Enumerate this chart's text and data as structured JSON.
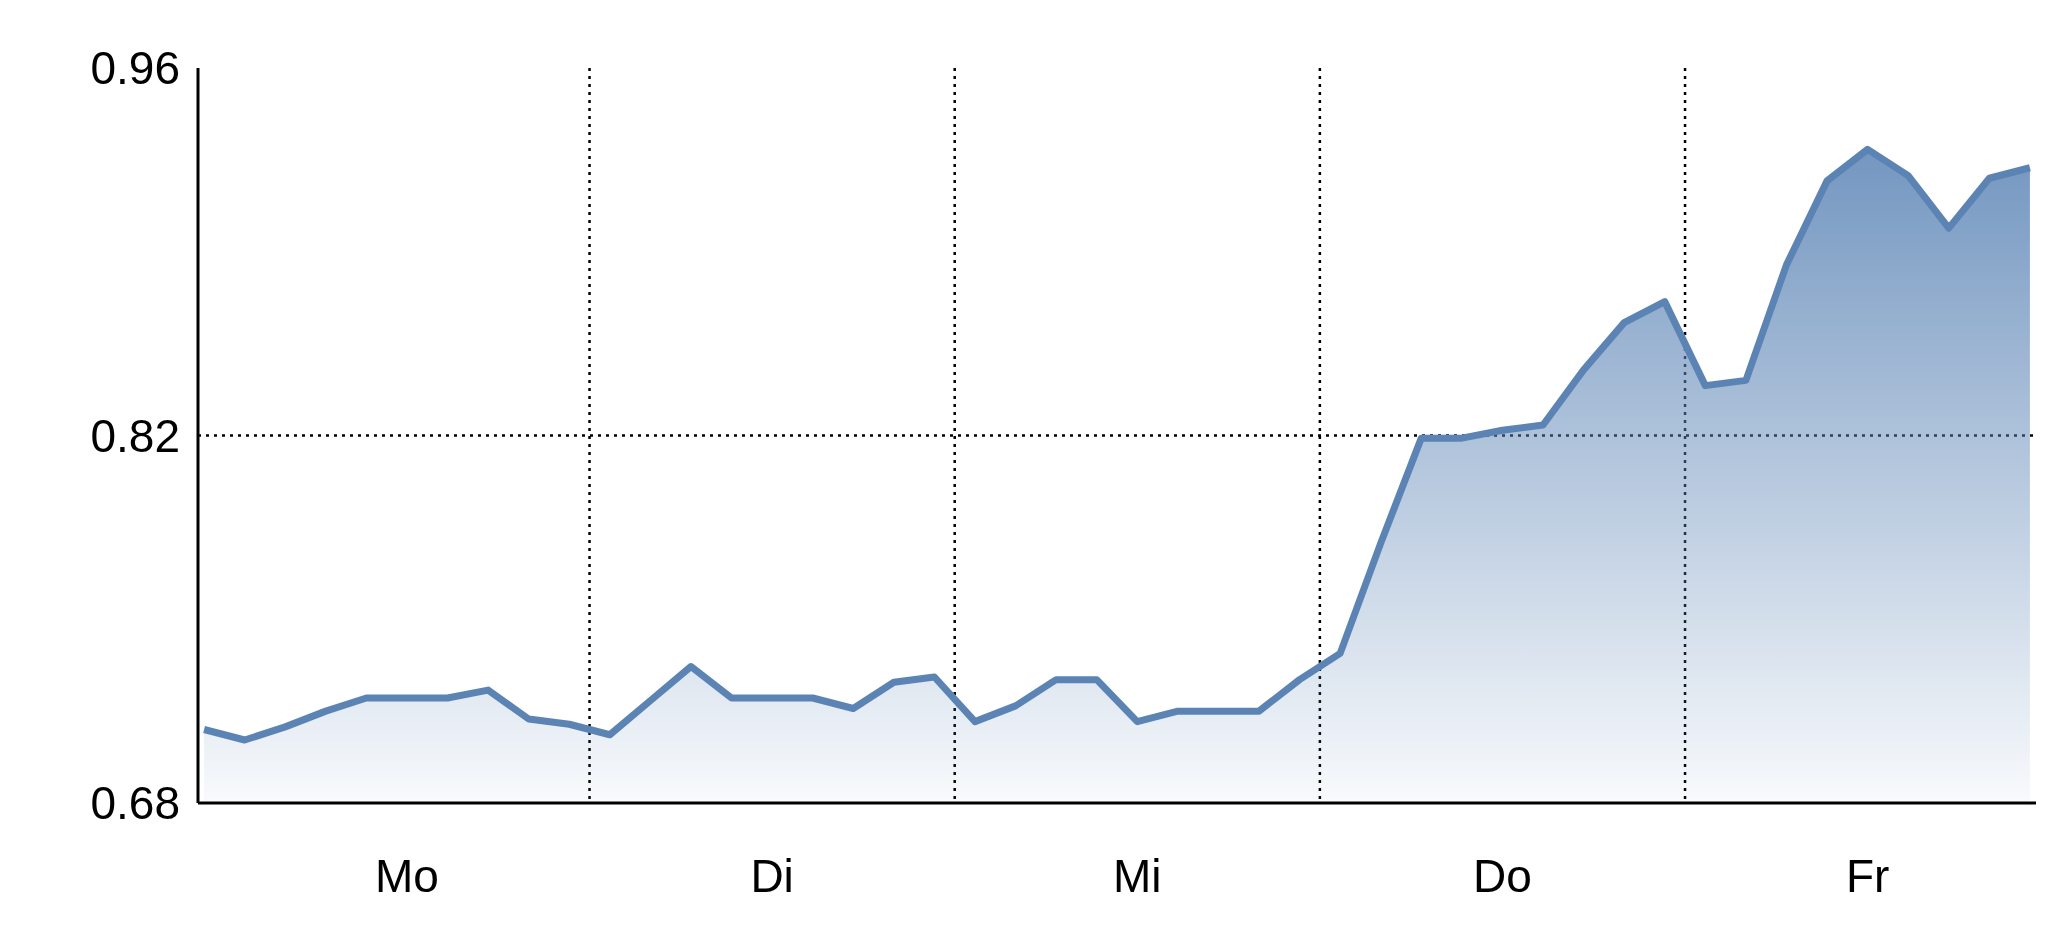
{
  "chart_data": {
    "type": "area",
    "categories": [
      null,
      null,
      null,
      null,
      null,
      "Mo",
      null,
      null,
      null,
      null,
      null,
      null,
      null,
      null,
      "Di",
      null,
      null,
      null,
      null,
      null,
      null,
      null,
      null,
      "Mi",
      null,
      null,
      null,
      null,
      null,
      null,
      null,
      null,
      "Do",
      null,
      null,
      null,
      null,
      null,
      null,
      null,
      null,
      "Fr",
      null,
      null,
      null,
      null
    ],
    "series": [
      {
        "color": "#5b84b5",
        "values": [
          0.708,
          0.704,
          0.709,
          0.715,
          0.72,
          0.72,
          0.72,
          0.723,
          0.712,
          0.71,
          0.706,
          0.719,
          0.732,
          0.72,
          0.72,
          0.72,
          0.716,
          0.726,
          0.728,
          0.711,
          0.717,
          0.727,
          0.727,
          0.711,
          0.715,
          0.715,
          0.715,
          0.727,
          0.737,
          0.779,
          0.819,
          0.819,
          0.822,
          0.824,
          0.845,
          0.863,
          0.871,
          0.839,
          0.841,
          0.885,
          0.917,
          0.929,
          0.919,
          0.899,
          0.918,
          0.922
        ]
      }
    ],
    "ylim": [
      0.68,
      0.96
    ],
    "yticks": [
      0.68,
      0.82,
      0.96
    ],
    "grid": true,
    "line_style": "solid"
  }
}
